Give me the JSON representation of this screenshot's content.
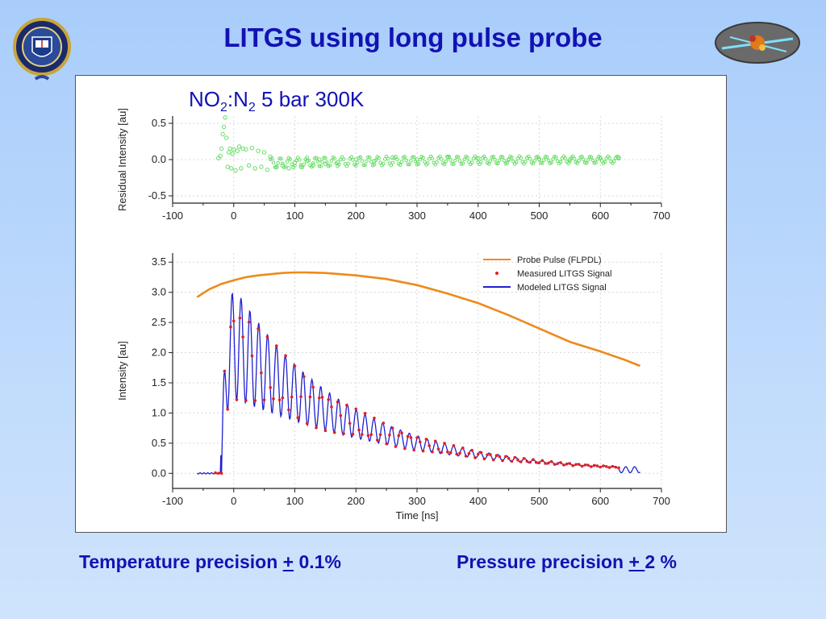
{
  "slide": {
    "title": "LITGS using long pulse probe",
    "footer": {
      "temperature_label": "Temperature precision",
      "temperature_pm": "+",
      "temperature_value": "0.1%",
      "pressure_label": "Pressure precision",
      "pressure_pm": "+ ",
      "pressure_value": "2 %"
    },
    "colors": {
      "title": "#1212b4",
      "background_top": "#a9cdfb",
      "background_bottom": "#cfe4fc"
    },
    "left_logo": "university-crest-icon",
    "right_logo": "laser-molecule-logo-icon"
  },
  "chart_data": [
    {
      "type": "scatter",
      "panel": "residual",
      "annotation": {
        "text_parts": [
          "NO",
          "2",
          ":N",
          "2",
          " 5 bar 300K"
        ]
      },
      "xlabel": "",
      "ylabel": "Residual Intensity [au]",
      "xlim": [
        -100,
        700
      ],
      "ylim": [
        -0.6,
        0.6
      ],
      "x_ticks": [
        -100,
        0,
        100,
        200,
        300,
        400,
        500,
        600,
        700
      ],
      "y_ticks": [
        -0.5,
        0.0,
        0.5
      ],
      "y_tick_labels": [
        "-0.5",
        "0.0",
        "0.5"
      ],
      "grid": true,
      "color": "#66dd66",
      "x": [
        -25,
        -22,
        -20,
        -18,
        -16,
        -14,
        -12,
        -10,
        -8,
        -6,
        -4,
        -2,
        0,
        3,
        6,
        9,
        12,
        15,
        20,
        25,
        30,
        35,
        40,
        45,
        50,
        55,
        60,
        70,
        80,
        90,
        100,
        110,
        120,
        130,
        140,
        150,
        170,
        200,
        230,
        260,
        300,
        350,
        400,
        450,
        500,
        550,
        600,
        630
      ],
      "y": [
        0.02,
        0.05,
        0.15,
        0.35,
        0.45,
        0.58,
        0.3,
        -0.1,
        0.1,
        0.15,
        -0.12,
        0.08,
        0.14,
        -0.15,
        0.12,
        0.18,
        -0.12,
        0.15,
        0.14,
        -0.08,
        0.16,
        -0.12,
        0.12,
        -0.1,
        0.1,
        -0.14,
        0.04,
        -0.1,
        -0.08,
        -0.12,
        -0.04,
        -0.1,
        -0.02,
        -0.08,
        0.0,
        -0.06,
        -0.04,
        0.0,
        -0.02,
        0.03,
        0.0,
        0.04,
        0.02,
        0.0,
        0.01,
        0.0,
        0.02,
        0.03
      ]
    },
    {
      "type": "line",
      "panel": "signal",
      "xlabel": "Time [ns]",
      "ylabel": "Intensity [au]",
      "xlim": [
        -100,
        700
      ],
      "ylim": [
        -0.25,
        3.65
      ],
      "x_ticks": [
        -100,
        0,
        100,
        200,
        300,
        400,
        500,
        600,
        700
      ],
      "y_ticks": [
        0.0,
        0.5,
        1.0,
        1.5,
        2.0,
        2.5,
        3.0,
        3.5
      ],
      "y_tick_labels": [
        "0.0",
        "0.5",
        "1.0",
        "1.5",
        "2.0",
        "2.5",
        "3.0",
        "3.5"
      ],
      "grid": true,
      "legend_position": "top-right",
      "series": [
        {
          "name": "Probe Pulse (FLPDL)",
          "style": "line",
          "color": "#ee8a1a",
          "x": [
            -60,
            -40,
            -20,
            0,
            20,
            40,
            60,
            80,
            100,
            120,
            150,
            200,
            250,
            300,
            350,
            400,
            450,
            500,
            550,
            600,
            640,
            665
          ],
          "y": [
            2.92,
            3.05,
            3.14,
            3.2,
            3.25,
            3.28,
            3.3,
            3.32,
            3.33,
            3.33,
            3.32,
            3.28,
            3.22,
            3.12,
            2.98,
            2.82,
            2.62,
            2.4,
            2.18,
            2.02,
            1.88,
            1.78
          ]
        },
        {
          "name": "Measured LITGS Signal",
          "style": "dots",
          "color": "#e02020",
          "model": {
            "x_start": -30,
            "x_end": 630,
            "step": 5
          }
        },
        {
          "name": "Modeled LITGS Signal",
          "style": "line",
          "color": "#2020d0",
          "model": {
            "x_start": -60,
            "x_end": 665,
            "step": 1,
            "baseline_until": -22,
            "rise_at": -20,
            "envelope_peak": 2.4,
            "envelope_tau": 205,
            "oscillation_period": 14.5,
            "oscillation_amp": 0.45
          }
        }
      ]
    }
  ]
}
